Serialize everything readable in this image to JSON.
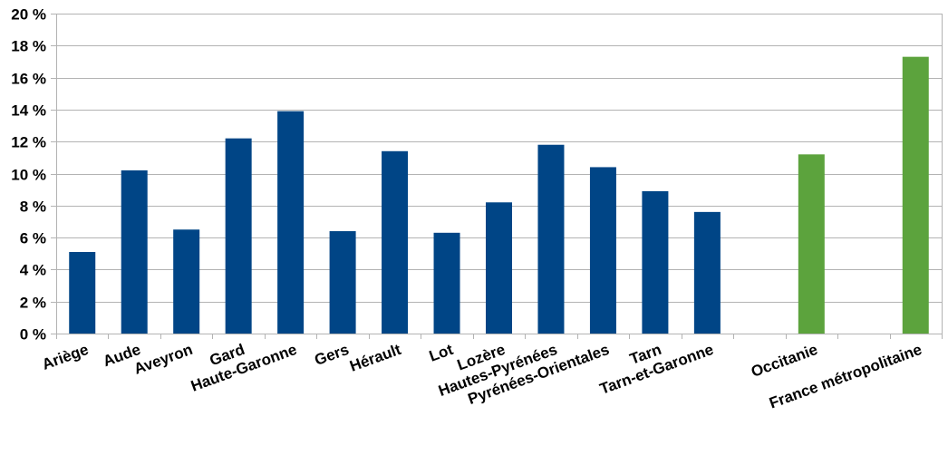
{
  "chart_data": {
    "type": "bar",
    "title": "",
    "xlabel": "",
    "ylabel": "",
    "ylim": [
      0,
      20
    ],
    "yticks": [
      0,
      2,
      4,
      6,
      8,
      10,
      12,
      14,
      16,
      18,
      20
    ],
    "ytick_labels": [
      "0 %",
      "2 %",
      "4 %",
      "6 %",
      "8 %",
      "10 %",
      "12 %",
      "14 %",
      "16 %",
      "18 %",
      "20 %"
    ],
    "grid": true,
    "legend": "none",
    "categories": [
      "Ariège",
      "Aude",
      "Aveyron",
      "Gard",
      "Haute-Garonne",
      "Gers",
      "Hérault",
      "Lot",
      "Lozère",
      "Hautes-Pyrénées",
      "Pyrénées-Orientales",
      "Tarn",
      "Tarn-et-Garonne",
      "",
      "Occitanie",
      "",
      "France métropolitaine"
    ],
    "values": [
      5.1,
      10.2,
      6.5,
      12.2,
      13.9,
      6.4,
      11.4,
      6.3,
      8.2,
      11.8,
      10.4,
      8.9,
      7.6,
      null,
      11.2,
      null,
      17.3
    ],
    "bar_colors": [
      "#004586",
      "#004586",
      "#004586",
      "#004586",
      "#004586",
      "#004586",
      "#004586",
      "#004586",
      "#004586",
      "#004586",
      "#004586",
      "#004586",
      "#004586",
      "#004586",
      "#5ca33d",
      "#5ca33d",
      "#5ca33d"
    ]
  }
}
